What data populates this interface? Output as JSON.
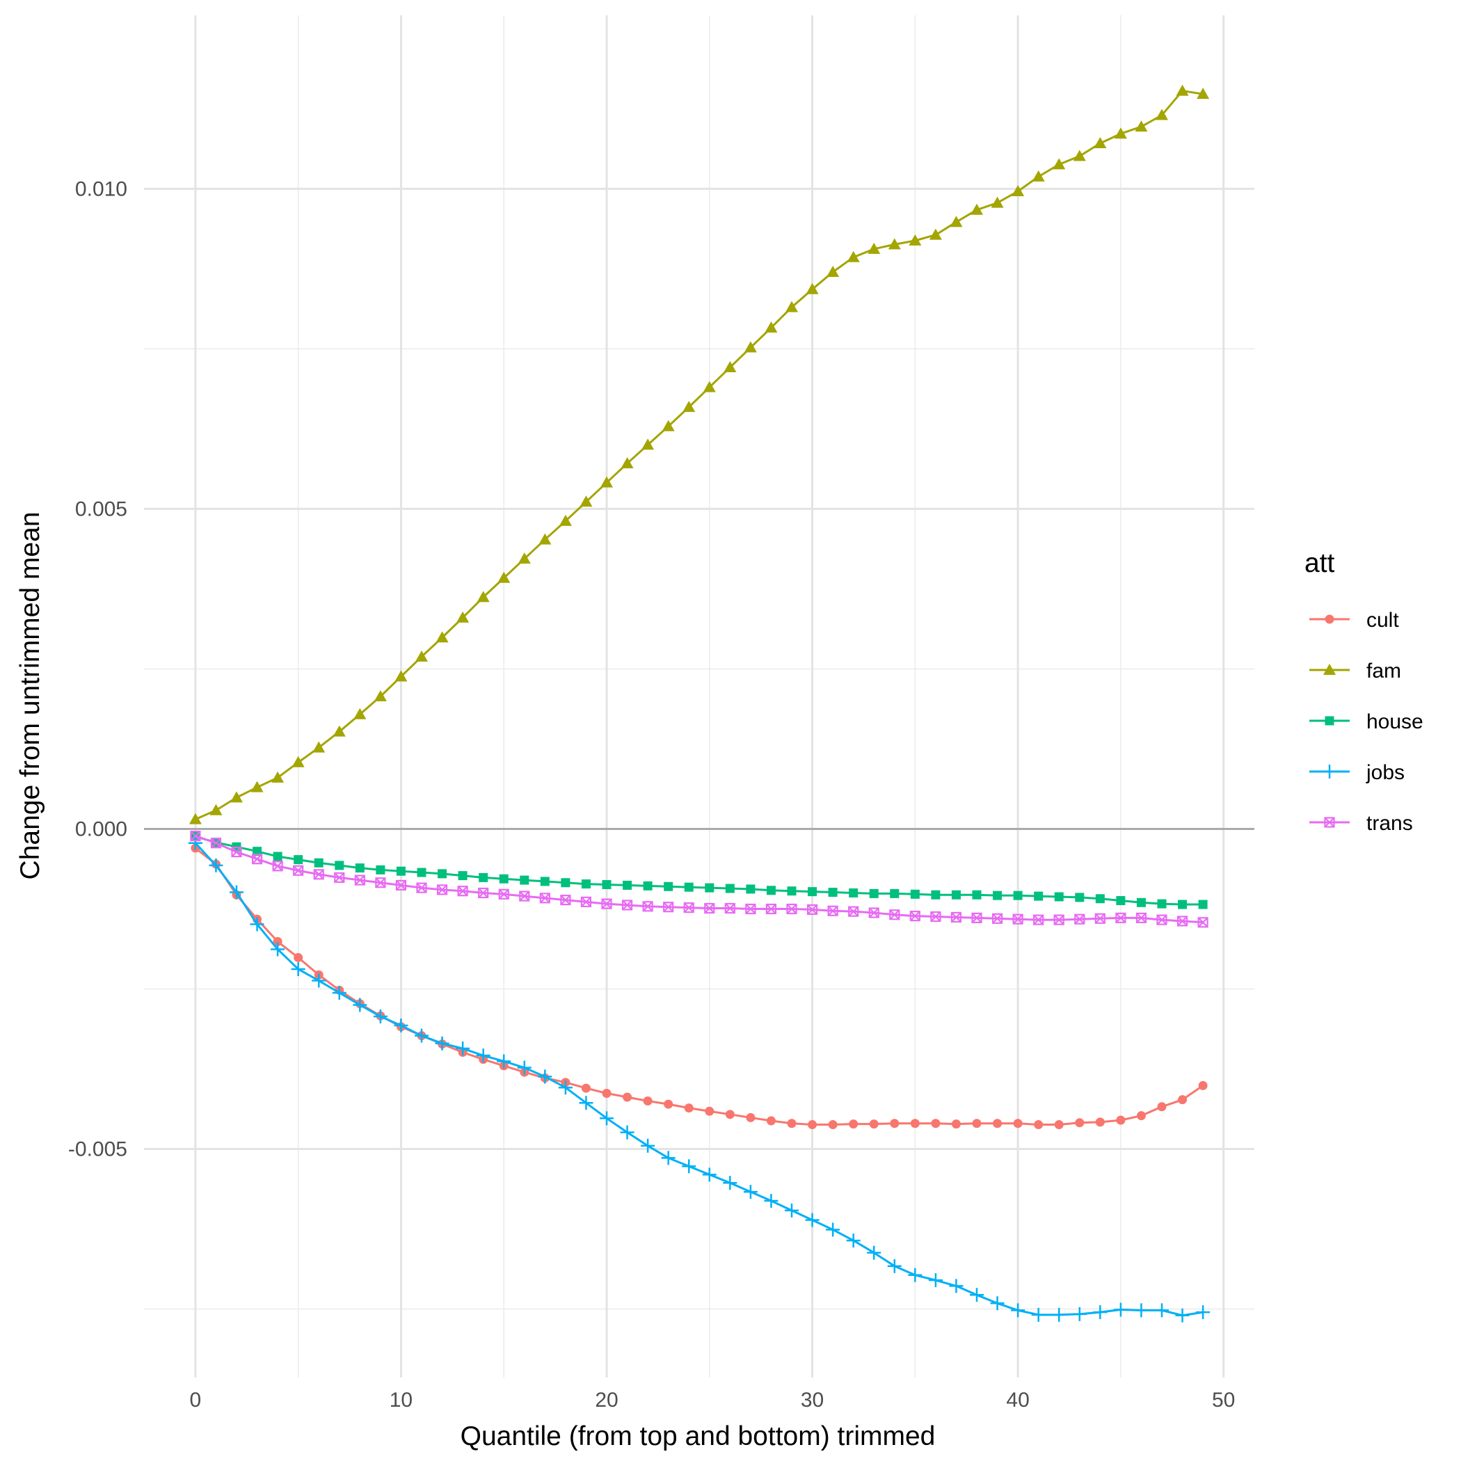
{
  "chart_data": {
    "type": "line",
    "xlabel": "Quantile (from top and bottom) trimmed",
    "ylabel": "Change from untrimmed mean",
    "xlim": [
      -2.5,
      51.5
    ],
    "ylim": [
      -0.00857,
      0.01271
    ],
    "x_ticks": [
      0,
      10,
      20,
      30,
      40,
      50
    ],
    "x_tick_labels": [
      "0",
      "10",
      "20",
      "30",
      "40",
      "50"
    ],
    "y_ticks": [
      -0.005,
      0.0,
      0.005,
      0.01
    ],
    "y_tick_labels": [
      "-0.005",
      "0.000",
      "0.005",
      "0.010"
    ],
    "y_minor_ticks": [
      -0.0075,
      -0.0025,
      0.0025,
      0.0075
    ],
    "reference_line_y": 0,
    "grid": true,
    "legend": {
      "title": "att",
      "position": "right"
    },
    "x": [
      0,
      1,
      2,
      3,
      4,
      5,
      6,
      7,
      8,
      9,
      10,
      11,
      12,
      13,
      14,
      15,
      16,
      17,
      18,
      19,
      20,
      21,
      22,
      23,
      24,
      25,
      26,
      27,
      28,
      29,
      30,
      31,
      32,
      33,
      34,
      35,
      36,
      37,
      38,
      39,
      40,
      41,
      42,
      43,
      44,
      45,
      46,
      47,
      48,
      49
    ],
    "series": [
      {
        "name": "cult",
        "color": "#F8766D",
        "marker": "circle",
        "values": [
          -0.0003,
          -0.00055,
          -0.00103,
          -0.00141,
          -0.00176,
          -0.00201,
          -0.00228,
          -0.00252,
          -0.00273,
          -0.00292,
          -0.00309,
          -0.00323,
          -0.00336,
          -0.00349,
          -0.0036,
          -0.0037,
          -0.0038,
          -0.00389,
          -0.00396,
          -0.00405,
          -0.00413,
          -0.00419,
          -0.00425,
          -0.0043,
          -0.00436,
          -0.00441,
          -0.00446,
          -0.00451,
          -0.00456,
          -0.0046,
          -0.00462,
          -0.00462,
          -0.00461,
          -0.00461,
          -0.0046,
          -0.0046,
          -0.0046,
          -0.00461,
          -0.0046,
          -0.0046,
          -0.0046,
          -0.00462,
          -0.00462,
          -0.00459,
          -0.00458,
          -0.00455,
          -0.00448,
          -0.00434,
          -0.00423,
          -0.00401
        ]
      },
      {
        "name": "fam",
        "color": "#A3A500",
        "marker": "triangle",
        "values": [
          0.00015,
          0.00029,
          0.00049,
          0.00065,
          0.0008,
          0.00104,
          0.00127,
          0.00152,
          0.00179,
          0.00207,
          0.00238,
          0.00269,
          0.00299,
          0.0033,
          0.00362,
          0.00392,
          0.00422,
          0.00452,
          0.00481,
          0.00511,
          0.00541,
          0.00571,
          0.006,
          0.00629,
          0.00659,
          0.0069,
          0.00721,
          0.00752,
          0.00783,
          0.00815,
          0.00843,
          0.0087,
          0.00893,
          0.00906,
          0.00913,
          0.00919,
          0.00928,
          0.00948,
          0.00967,
          0.00978,
          0.00996,
          0.01019,
          0.01038,
          0.01051,
          0.01071,
          0.01086,
          0.01097,
          0.01115,
          0.01153,
          0.01148
        ]
      },
      {
        "name": "house",
        "color": "#00BF7D",
        "marker": "square",
        "values": [
          -0.00012,
          -0.00021,
          -0.00028,
          -0.00035,
          -0.00043,
          -0.00048,
          -0.00053,
          -0.00057,
          -0.00061,
          -0.00064,
          -0.00066,
          -0.00068,
          -0.0007,
          -0.00073,
          -0.00076,
          -0.00078,
          -0.0008,
          -0.00082,
          -0.00084,
          -0.00086,
          -0.00087,
          -0.00088,
          -0.00089,
          -0.0009,
          -0.00091,
          -0.00092,
          -0.00093,
          -0.00094,
          -0.00096,
          -0.00097,
          -0.00098,
          -0.00099,
          -0.001,
          -0.00101,
          -0.00101,
          -0.00102,
          -0.00103,
          -0.00103,
          -0.00103,
          -0.00104,
          -0.00104,
          -0.00105,
          -0.00106,
          -0.00107,
          -0.00109,
          -0.00112,
          -0.00115,
          -0.00117,
          -0.00118,
          -0.00118
        ]
      },
      {
        "name": "jobs",
        "color": "#00B0F6",
        "marker": "plus",
        "values": [
          -0.00022,
          -0.00057,
          -0.00099,
          -0.00149,
          -0.00188,
          -0.00219,
          -0.00237,
          -0.00256,
          -0.00275,
          -0.00293,
          -0.00307,
          -0.00323,
          -0.00335,
          -0.00343,
          -0.00354,
          -0.00363,
          -0.00373,
          -0.00387,
          -0.00404,
          -0.00428,
          -0.00452,
          -0.00474,
          -0.00495,
          -0.00514,
          -0.00527,
          -0.0054,
          -0.00553,
          -0.00567,
          -0.00581,
          -0.00596,
          -0.00611,
          -0.00626,
          -0.00643,
          -0.00662,
          -0.00683,
          -0.00697,
          -0.00705,
          -0.00714,
          -0.00728,
          -0.00741,
          -0.00752,
          -0.00759,
          -0.00759,
          -0.00758,
          -0.00755,
          -0.00751,
          -0.00752,
          -0.00752,
          -0.0076,
          -0.00755
        ]
      },
      {
        "name": "trans",
        "color": "#E76BF3",
        "marker": "boxcross",
        "values": [
          -0.00011,
          -0.00022,
          -0.00036,
          -0.00047,
          -0.00058,
          -0.00065,
          -0.00071,
          -0.00076,
          -0.0008,
          -0.00084,
          -0.00088,
          -0.00092,
          -0.00095,
          -0.00097,
          -0.001,
          -0.00102,
          -0.00105,
          -0.00108,
          -0.00111,
          -0.00114,
          -0.00117,
          -0.00119,
          -0.00121,
          -0.00122,
          -0.00123,
          -0.00124,
          -0.00124,
          -0.00125,
          -0.00125,
          -0.00125,
          -0.00126,
          -0.00128,
          -0.00129,
          -0.00131,
          -0.00134,
          -0.00136,
          -0.00137,
          -0.00138,
          -0.00139,
          -0.0014,
          -0.00141,
          -0.00142,
          -0.00142,
          -0.00141,
          -0.0014,
          -0.00139,
          -0.00139,
          -0.00142,
          -0.00144,
          -0.00146
        ]
      }
    ]
  }
}
